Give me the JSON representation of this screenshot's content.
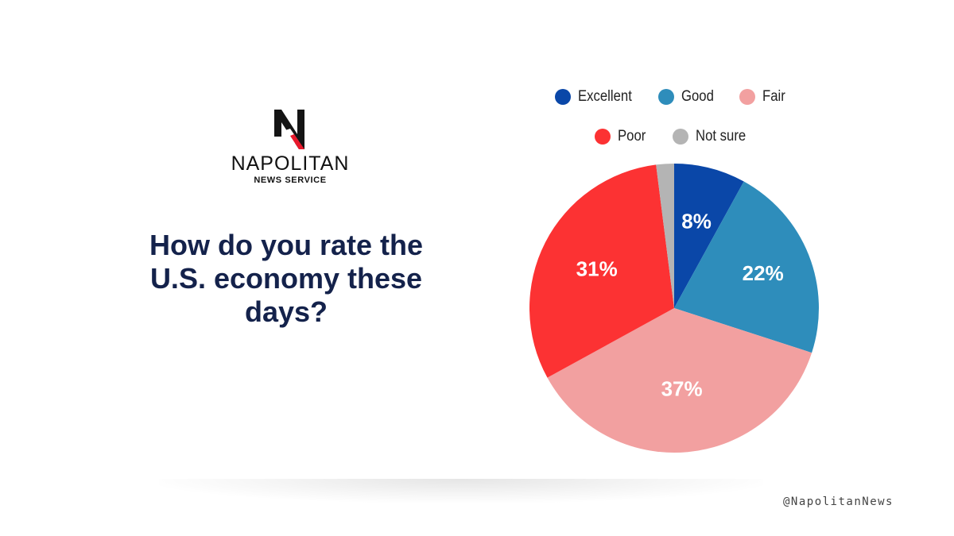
{
  "brand": {
    "name": "NAPOLITAN",
    "subtitle": "NEWS SERVICE",
    "handle": "@NapolitanNews"
  },
  "chart_data": {
    "type": "pie",
    "title": "How do you rate the U.S. economy these days?",
    "legend_position": "top",
    "categories": [
      "Excellent",
      "Good",
      "Fair",
      "Poor",
      "Not sure"
    ],
    "values": [
      8,
      22,
      37,
      31,
      2
    ],
    "labels": [
      "8%",
      "22%",
      "37%",
      "31%",
      ""
    ],
    "colors": [
      "#0a47a8",
      "#2e8dbb",
      "#f2a0a0",
      "#fc3233",
      "#b4b4b4"
    ]
  }
}
